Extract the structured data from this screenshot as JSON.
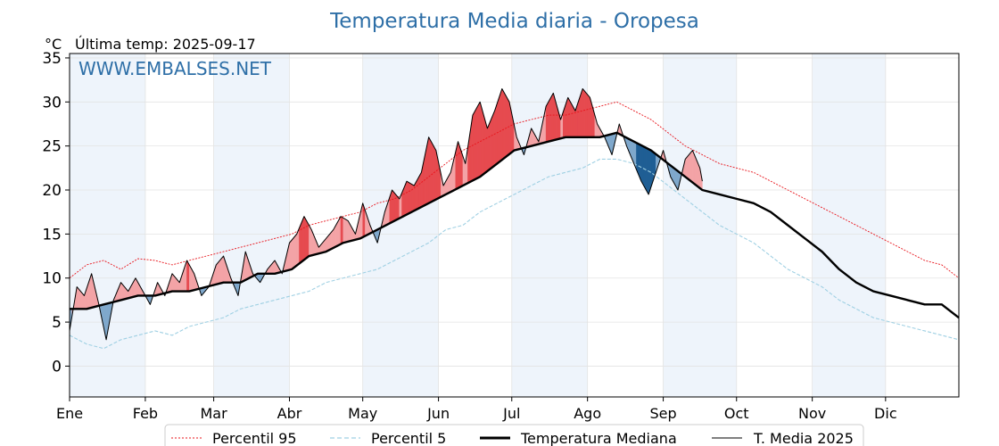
{
  "chart_data": {
    "type": "line",
    "title": "Temperatura Media diaria - Oropesa",
    "unit_label": "°C",
    "subtitle": "Última temp: 2025-09-17",
    "watermark": "WWW.EMBALSES.NET",
    "x_categories": [
      "Ene",
      "Feb",
      "Mar",
      "Abr",
      "May",
      "Jun",
      "Jul",
      "Ago",
      "Sep",
      "Oct",
      "Nov",
      "Dic"
    ],
    "x_range_days": [
      1,
      365
    ],
    "ylim": [
      -3.5,
      35.5
    ],
    "y_ticks": [
      0,
      5,
      10,
      15,
      20,
      25,
      30,
      35
    ],
    "grid": true,
    "legend_position": "bottom",
    "colors": {
      "title": "#2e6fa7",
      "p95": "#e8141b",
      "p5": "#9fd0e3",
      "median": "#000000",
      "current": "#000000",
      "above_fill": "#f3a3a6",
      "above_fill_strong": "#e64a4f",
      "below_fill": "#7fa8cc",
      "below_fill_strong": "#1f5e94",
      "month_band": "#eef4fb"
    },
    "series": [
      {
        "name": "Percentil 95",
        "style": "dotted-thin",
        "x": [
          1,
          8,
          15,
          22,
          29,
          36,
          43,
          50,
          57,
          64,
          71,
          78,
          85,
          92,
          99,
          106,
          113,
          120,
          127,
          134,
          141,
          148,
          155,
          162,
          169,
          176,
          183,
          190,
          197,
          204,
          211,
          218,
          225,
          232,
          239,
          246,
          253,
          260,
          267,
          274,
          281,
          288,
          295,
          302,
          309,
          316,
          323,
          330,
          337,
          344,
          351,
          358,
          365
        ],
        "y": [
          10.0,
          11.5,
          12.0,
          11.0,
          12.2,
          12.0,
          11.5,
          12.0,
          12.5,
          13.0,
          13.5,
          14.0,
          14.5,
          15.0,
          16.0,
          16.5,
          17.0,
          17.5,
          18.5,
          19.0,
          20.0,
          21.5,
          23.0,
          24.5,
          25.5,
          26.5,
          27.5,
          28.0,
          28.5,
          28.5,
          29.0,
          29.5,
          30.0,
          29.0,
          28.0,
          26.5,
          25.0,
          24.0,
          23.0,
          22.5,
          22.0,
          21.0,
          20.0,
          19.0,
          18.0,
          17.0,
          16.0,
          15.0,
          14.0,
          13.0,
          12.0,
          11.5,
          10.0
        ]
      },
      {
        "name": "Percentil 5",
        "style": "dashed-thin",
        "x": [
          1,
          8,
          15,
          22,
          29,
          36,
          43,
          50,
          57,
          64,
          71,
          78,
          85,
          92,
          99,
          106,
          113,
          120,
          127,
          134,
          141,
          148,
          155,
          162,
          169,
          176,
          183,
          190,
          197,
          204,
          211,
          218,
          225,
          232,
          239,
          246,
          253,
          260,
          267,
          274,
          281,
          288,
          295,
          302,
          309,
          316,
          323,
          330,
          337,
          344,
          351,
          358,
          365
        ],
        "y": [
          3.5,
          2.5,
          2.0,
          3.0,
          3.5,
          4.0,
          3.5,
          4.5,
          5.0,
          5.5,
          6.5,
          7.0,
          7.5,
          8.0,
          8.5,
          9.5,
          10.0,
          10.5,
          11.0,
          12.0,
          13.0,
          14.0,
          15.5,
          16.0,
          17.5,
          18.5,
          19.5,
          20.5,
          21.5,
          22.0,
          22.5,
          23.5,
          23.5,
          23.0,
          22.0,
          20.5,
          19.0,
          17.5,
          16.0,
          15.0,
          14.0,
          12.5,
          11.0,
          10.0,
          9.0,
          7.5,
          6.5,
          5.5,
          5.0,
          4.5,
          4.0,
          3.5,
          3.0
        ]
      },
      {
        "name": "Temperatura Mediana",
        "style": "thick",
        "x": [
          1,
          8,
          15,
          22,
          29,
          36,
          43,
          50,
          57,
          64,
          71,
          78,
          85,
          92,
          99,
          106,
          113,
          120,
          127,
          134,
          141,
          148,
          155,
          162,
          169,
          176,
          183,
          190,
          197,
          204,
          211,
          218,
          225,
          232,
          239,
          246,
          253,
          260,
          267,
          274,
          281,
          288,
          295,
          302,
          309,
          316,
          323,
          330,
          337,
          344,
          351,
          358,
          365
        ],
        "y": [
          6.5,
          6.5,
          7.0,
          7.5,
          8.0,
          8.0,
          8.5,
          8.5,
          9.0,
          9.5,
          9.5,
          10.5,
          10.5,
          11.0,
          12.5,
          13.0,
          14.0,
          14.5,
          15.5,
          16.5,
          17.5,
          18.5,
          19.5,
          20.5,
          21.5,
          23.0,
          24.5,
          25.0,
          25.5,
          26.0,
          26.0,
          26.0,
          26.5,
          25.5,
          24.5,
          23.0,
          21.5,
          20.0,
          19.5,
          19.0,
          18.5,
          17.5,
          16.0,
          14.5,
          13.0,
          11.0,
          9.5,
          8.5,
          8.0,
          7.5,
          7.0,
          7.0,
          5.5
        ]
      },
      {
        "name": "T. Media 2025",
        "style": "thin",
        "x": [
          1,
          4,
          7,
          10,
          13,
          16,
          19,
          22,
          25,
          28,
          31,
          34,
          37,
          40,
          43,
          46,
          49,
          52,
          55,
          58,
          61,
          64,
          67,
          70,
          73,
          76,
          79,
          82,
          85,
          88,
          91,
          94,
          97,
          100,
          103,
          106,
          109,
          112,
          115,
          118,
          121,
          124,
          127,
          130,
          133,
          136,
          139,
          142,
          145,
          148,
          151,
          154,
          157,
          160,
          163,
          166,
          169,
          172,
          175,
          178,
          181,
          184,
          187,
          190,
          193,
          196,
          199,
          202,
          205,
          208,
          211,
          214,
          217,
          220,
          223,
          226,
          229,
          232,
          235,
          238,
          241,
          244,
          247,
          250,
          253,
          256,
          259,
          260
        ],
        "y": [
          4.0,
          9.0,
          8.0,
          10.5,
          7.0,
          3.0,
          7.5,
          9.5,
          8.5,
          10.0,
          8.5,
          7.0,
          9.5,
          8.0,
          10.5,
          9.5,
          12.0,
          10.5,
          8.0,
          9.0,
          11.5,
          12.5,
          10.0,
          8.0,
          13.0,
          10.5,
          9.5,
          11.0,
          12.0,
          10.5,
          14.0,
          15.0,
          17.0,
          15.5,
          13.5,
          14.5,
          15.5,
          17.0,
          16.5,
          15.0,
          18.5,
          16.0,
          14.0,
          17.5,
          20.0,
          19.0,
          21.0,
          20.5,
          22.0,
          26.0,
          24.5,
          20.5,
          22.0,
          25.5,
          23.0,
          28.5,
          30.0,
          27.0,
          29.0,
          31.5,
          30.0,
          26.0,
          24.0,
          27.0,
          25.5,
          29.5,
          31.0,
          28.0,
          30.5,
          29.0,
          31.5,
          30.5,
          27.5,
          26.0,
          24.0,
          27.5,
          25.0,
          23.0,
          21.0,
          19.5,
          22.0,
          24.5,
          21.5,
          20.0,
          23.5,
          24.5,
          22.5,
          21.0
        ]
      }
    ],
    "legend": [
      "Percentil 95",
      "Percentil 5",
      "Temperatura Mediana",
      "T. Media 2025"
    ]
  }
}
